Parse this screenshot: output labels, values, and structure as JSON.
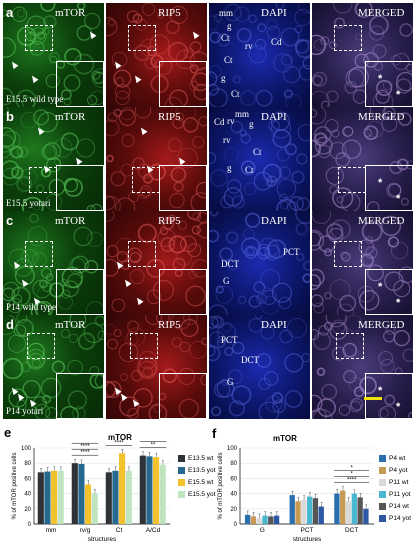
{
  "panels": {
    "titles": [
      "mTOR",
      "RIP5",
      "DAPI",
      "MERGED"
    ],
    "rows": [
      {
        "letter": "a",
        "condition": "E15.5 wild type",
        "dapi_labels": [
          "mm",
          "g",
          "Ct",
          "Ct",
          "rv",
          "Cd",
          "g",
          "Ct"
        ]
      },
      {
        "letter": "b",
        "condition": "E15.5 yotari",
        "dapi_labels": [
          "Cd",
          "rv",
          "mm",
          "g",
          "rv",
          "Ct",
          "g",
          "Ct"
        ]
      },
      {
        "letter": "c",
        "condition": "P14 wild type",
        "dapi_labels": [
          "PCT",
          "DCT",
          "G"
        ]
      },
      {
        "letter": "d",
        "condition": "P14 yotari",
        "dapi_labels": [
          "PCT",
          "DCT",
          "G"
        ]
      }
    ],
    "inset_star": "*"
  },
  "colors": {
    "E13.5 wt": "#2f3338",
    "E13.5 yot": "#27688f",
    "E15.5 wt": "#f2c12e",
    "E15.5 yot": "#bfe5c0",
    "P4 wt": "#2b6fae",
    "P4 yot": "#c79a55",
    "P11 wt": "#d9d9d9",
    "P11 yot": "#48b7cf",
    "P14 wt": "#555555",
    "P14 yot": "#2c58a5"
  },
  "chart_data": [
    {
      "letter": "e",
      "type": "bar",
      "title": "mTOR",
      "xlabel": "structures",
      "ylabel": "% of mTOR positive cells",
      "ylim": [
        0,
        100
      ],
      "yticks": [
        0,
        20,
        40,
        60,
        80,
        100
      ],
      "categories": [
        "mm",
        "rv/g",
        "Ct",
        "A/Cd"
      ],
      "series": [
        {
          "name": "E13.5 wt",
          "values": [
            68,
            80,
            68,
            90
          ]
        },
        {
          "name": "E13.5 yot",
          "values": [
            69,
            79,
            70,
            89
          ]
        },
        {
          "name": "E15.5 wt",
          "values": [
            70,
            52,
            93,
            88
          ]
        },
        {
          "name": "E15.5 yot",
          "values": [
            70,
            40,
            70,
            78
          ]
        }
      ],
      "significance": [
        {
          "category": "rv/g",
          "marks": [
            "****",
            "****",
            "***"
          ]
        },
        {
          "category": "Ct",
          "marks": [
            "****",
            "****"
          ]
        },
        {
          "category": "A/Cd",
          "marks": [
            "**",
            "**"
          ]
        }
      ]
    },
    {
      "letter": "f",
      "type": "bar",
      "title": "mTOR",
      "xlabel": "structures",
      "ylabel": "% of mTOR positive cells",
      "ylim": [
        0,
        100
      ],
      "yticks": [
        0,
        20,
        40,
        60,
        80,
        100
      ],
      "categories": [
        "G",
        "PCT",
        "DCT"
      ],
      "series": [
        {
          "name": "P4 wt",
          "values": [
            12,
            38,
            40
          ]
        },
        {
          "name": "P4 yot",
          "values": [
            10,
            30,
            44
          ]
        },
        {
          "name": "P11 wt",
          "values": [
            8,
            32,
            30
          ]
        },
        {
          "name": "P11 yot",
          "values": [
            11,
            36,
            40
          ]
        },
        {
          "name": "P14 wt",
          "values": [
            10,
            34,
            35
          ]
        },
        {
          "name": "P14 yot",
          "values": [
            11,
            23,
            20
          ]
        }
      ],
      "significance": [
        {
          "category": "DCT",
          "marks": [
            "****",
            "*",
            "*"
          ]
        }
      ]
    }
  ]
}
